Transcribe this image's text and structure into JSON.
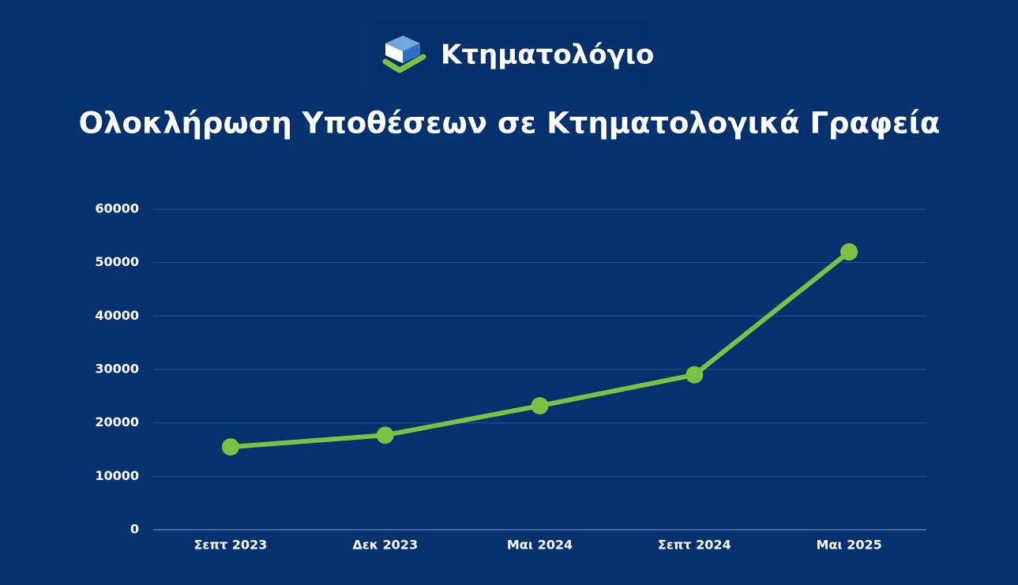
{
  "logo": "Κτηματολόγιο",
  "chart_data": {
    "type": "line",
    "title": "Ολοκλήρωση Υποθέσεων σε Κτηματολογικά Γραφεία",
    "categories": [
      "Σεπτ 2023",
      "Δεκ 2023",
      "Μαι 2024",
      "Σεπτ 2024",
      "Μαι 2025"
    ],
    "values": [
      15500,
      17700,
      23200,
      29000,
      52000
    ],
    "color": "#7cc142",
    "ylim": [
      0,
      60000
    ],
    "yticks": [
      0,
      10000,
      20000,
      30000,
      40000,
      50000,
      60000
    ],
    "grid": true
  }
}
